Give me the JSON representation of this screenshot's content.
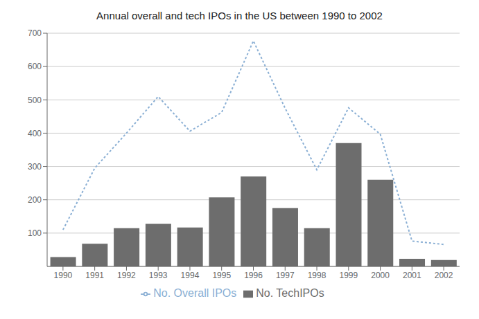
{
  "chart_data": {
    "type": "bar",
    "title": "Annual overall and tech IPOs in the US between 1990 to 2002",
    "categories": [
      "1990",
      "1991",
      "1992",
      "1993",
      "1994",
      "1995",
      "1996",
      "1997",
      "1998",
      "1999",
      "2000",
      "2001",
      "2002"
    ],
    "series": [
      {
        "name": "No. TechIPOs",
        "type": "bar",
        "color": "#6d6d6d",
        "values": [
          28,
          68,
          115,
          128,
          117,
          207,
          270,
          175,
          115,
          370,
          260,
          23,
          19
        ]
      },
      {
        "name": "No. Overall IPOs",
        "type": "line",
        "color": "#8aafd4",
        "line_style": "dotted",
        "values": [
          110,
          295,
          400,
          510,
          406,
          462,
          677,
          475,
          290,
          476,
          397,
          76,
          66
        ]
      }
    ],
    "ylim": [
      0,
      700
    ],
    "yticks": [
      100,
      200,
      300,
      400,
      500,
      600,
      700
    ],
    "grid": true,
    "legend": "bottom"
  }
}
